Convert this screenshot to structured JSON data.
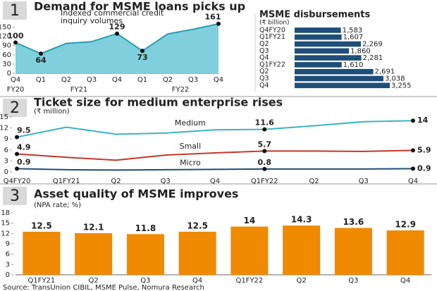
{
  "panels": [
    {
      "number": "1",
      "title": "Demand for MSME loans picks up"
    },
    {
      "number": "2",
      "title": "Ticket size for medium enterprise rises"
    },
    {
      "number": "3",
      "title": "Asset quality of MSME improves"
    }
  ],
  "chart_data": [
    {
      "type": "area",
      "title": "Indexed commercial credit inquiry volumes",
      "categories": [
        "Q4",
        "Q1",
        "Q2",
        "Q3",
        "Q4",
        "Q1",
        "Q2",
        "Q3",
        "Q4"
      ],
      "x_groups": [
        {
          "label": "FY20",
          "span": 1
        },
        {
          "label": "FY21",
          "span": 4
        },
        {
          "label": "FY22",
          "span": 4
        }
      ],
      "values": [
        100,
        64,
        97,
        103,
        129,
        73,
        128,
        143,
        161
      ],
      "value_labels": [
        "100",
        "64",
        null,
        null,
        "129",
        "73",
        null,
        null,
        "161"
      ],
      "color": "#7fd0dc",
      "line_color": "#2a9db0",
      "ylim": [
        0,
        165
      ],
      "yticks": [
        0,
        30,
        60,
        90,
        120,
        150
      ]
    },
    {
      "type": "hbar",
      "title": "MSME disbursements",
      "subtitle": "(₹ billion)",
      "categories": [
        "Q4FY20",
        "Q1FY21",
        "Q2",
        "Q3",
        "Q4",
        "Q1FY22",
        "Q2",
        "Q3",
        "Q4"
      ],
      "values": [
        1583,
        1607,
        2269,
        1860,
        2281,
        1610,
        2691,
        3038,
        3255
      ],
      "value_labels": [
        "1,583",
        "1,607",
        "2,269",
        "1,860",
        "2,281",
        "1,610",
        "2,691",
        "3,038",
        "3,255"
      ],
      "color": "#1f4e79"
    },
    {
      "type": "line",
      "subtitle": "(₹ million)",
      "categories": [
        "Q4FY20",
        "Q1FY21",
        "Q2",
        "Q3",
        "Q4",
        "Q1FY22",
        "Q2",
        "Q3",
        "Q4"
      ],
      "series": [
        {
          "name": "Medium",
          "color": "#3bb3c3",
          "values": [
            9.5,
            12.2,
            10.3,
            10.6,
            11.5,
            11.6,
            12.6,
            13.7,
            14
          ],
          "value_labels": [
            "9.5",
            null,
            null,
            null,
            null,
            "11.6",
            null,
            null,
            "14"
          ]
        },
        {
          "name": "Small",
          "color": "#c0392b",
          "values": [
            4.9,
            4.0,
            3.2,
            4.6,
            5.2,
            5.7,
            5.7,
            5.6,
            5.9
          ],
          "value_labels": [
            "4.9",
            null,
            null,
            null,
            null,
            "5.7",
            null,
            null,
            "5.9"
          ]
        },
        {
          "name": "Micro",
          "color": "#1f4e79",
          "values": [
            0.9,
            0.6,
            0.5,
            0.6,
            0.7,
            0.8,
            0.8,
            0.8,
            0.9
          ],
          "value_labels": [
            "0.9",
            null,
            null,
            null,
            null,
            "0.8",
            null,
            null,
            "0.9"
          ]
        }
      ],
      "ylim": [
        0,
        15
      ],
      "yticks": [
        0,
        3,
        6,
        9,
        12,
        15
      ]
    },
    {
      "type": "bar",
      "subtitle": "(NPA rate; %)",
      "categories": [
        "Q1FY21",
        "Q2",
        "Q3",
        "Q4",
        "Q1FY22",
        "Q2",
        "Q3",
        "Q4"
      ],
      "values": [
        12.5,
        12.1,
        11.8,
        12.5,
        14,
        14.3,
        13.6,
        12.9
      ],
      "color": "#f08a00",
      "ylim": [
        0,
        18
      ],
      "yticks": [
        0,
        3,
        6,
        9,
        12,
        15,
        18
      ]
    }
  ],
  "source": "Source: TransUnion CIBIL, MSME Pulse, Nomura Research"
}
